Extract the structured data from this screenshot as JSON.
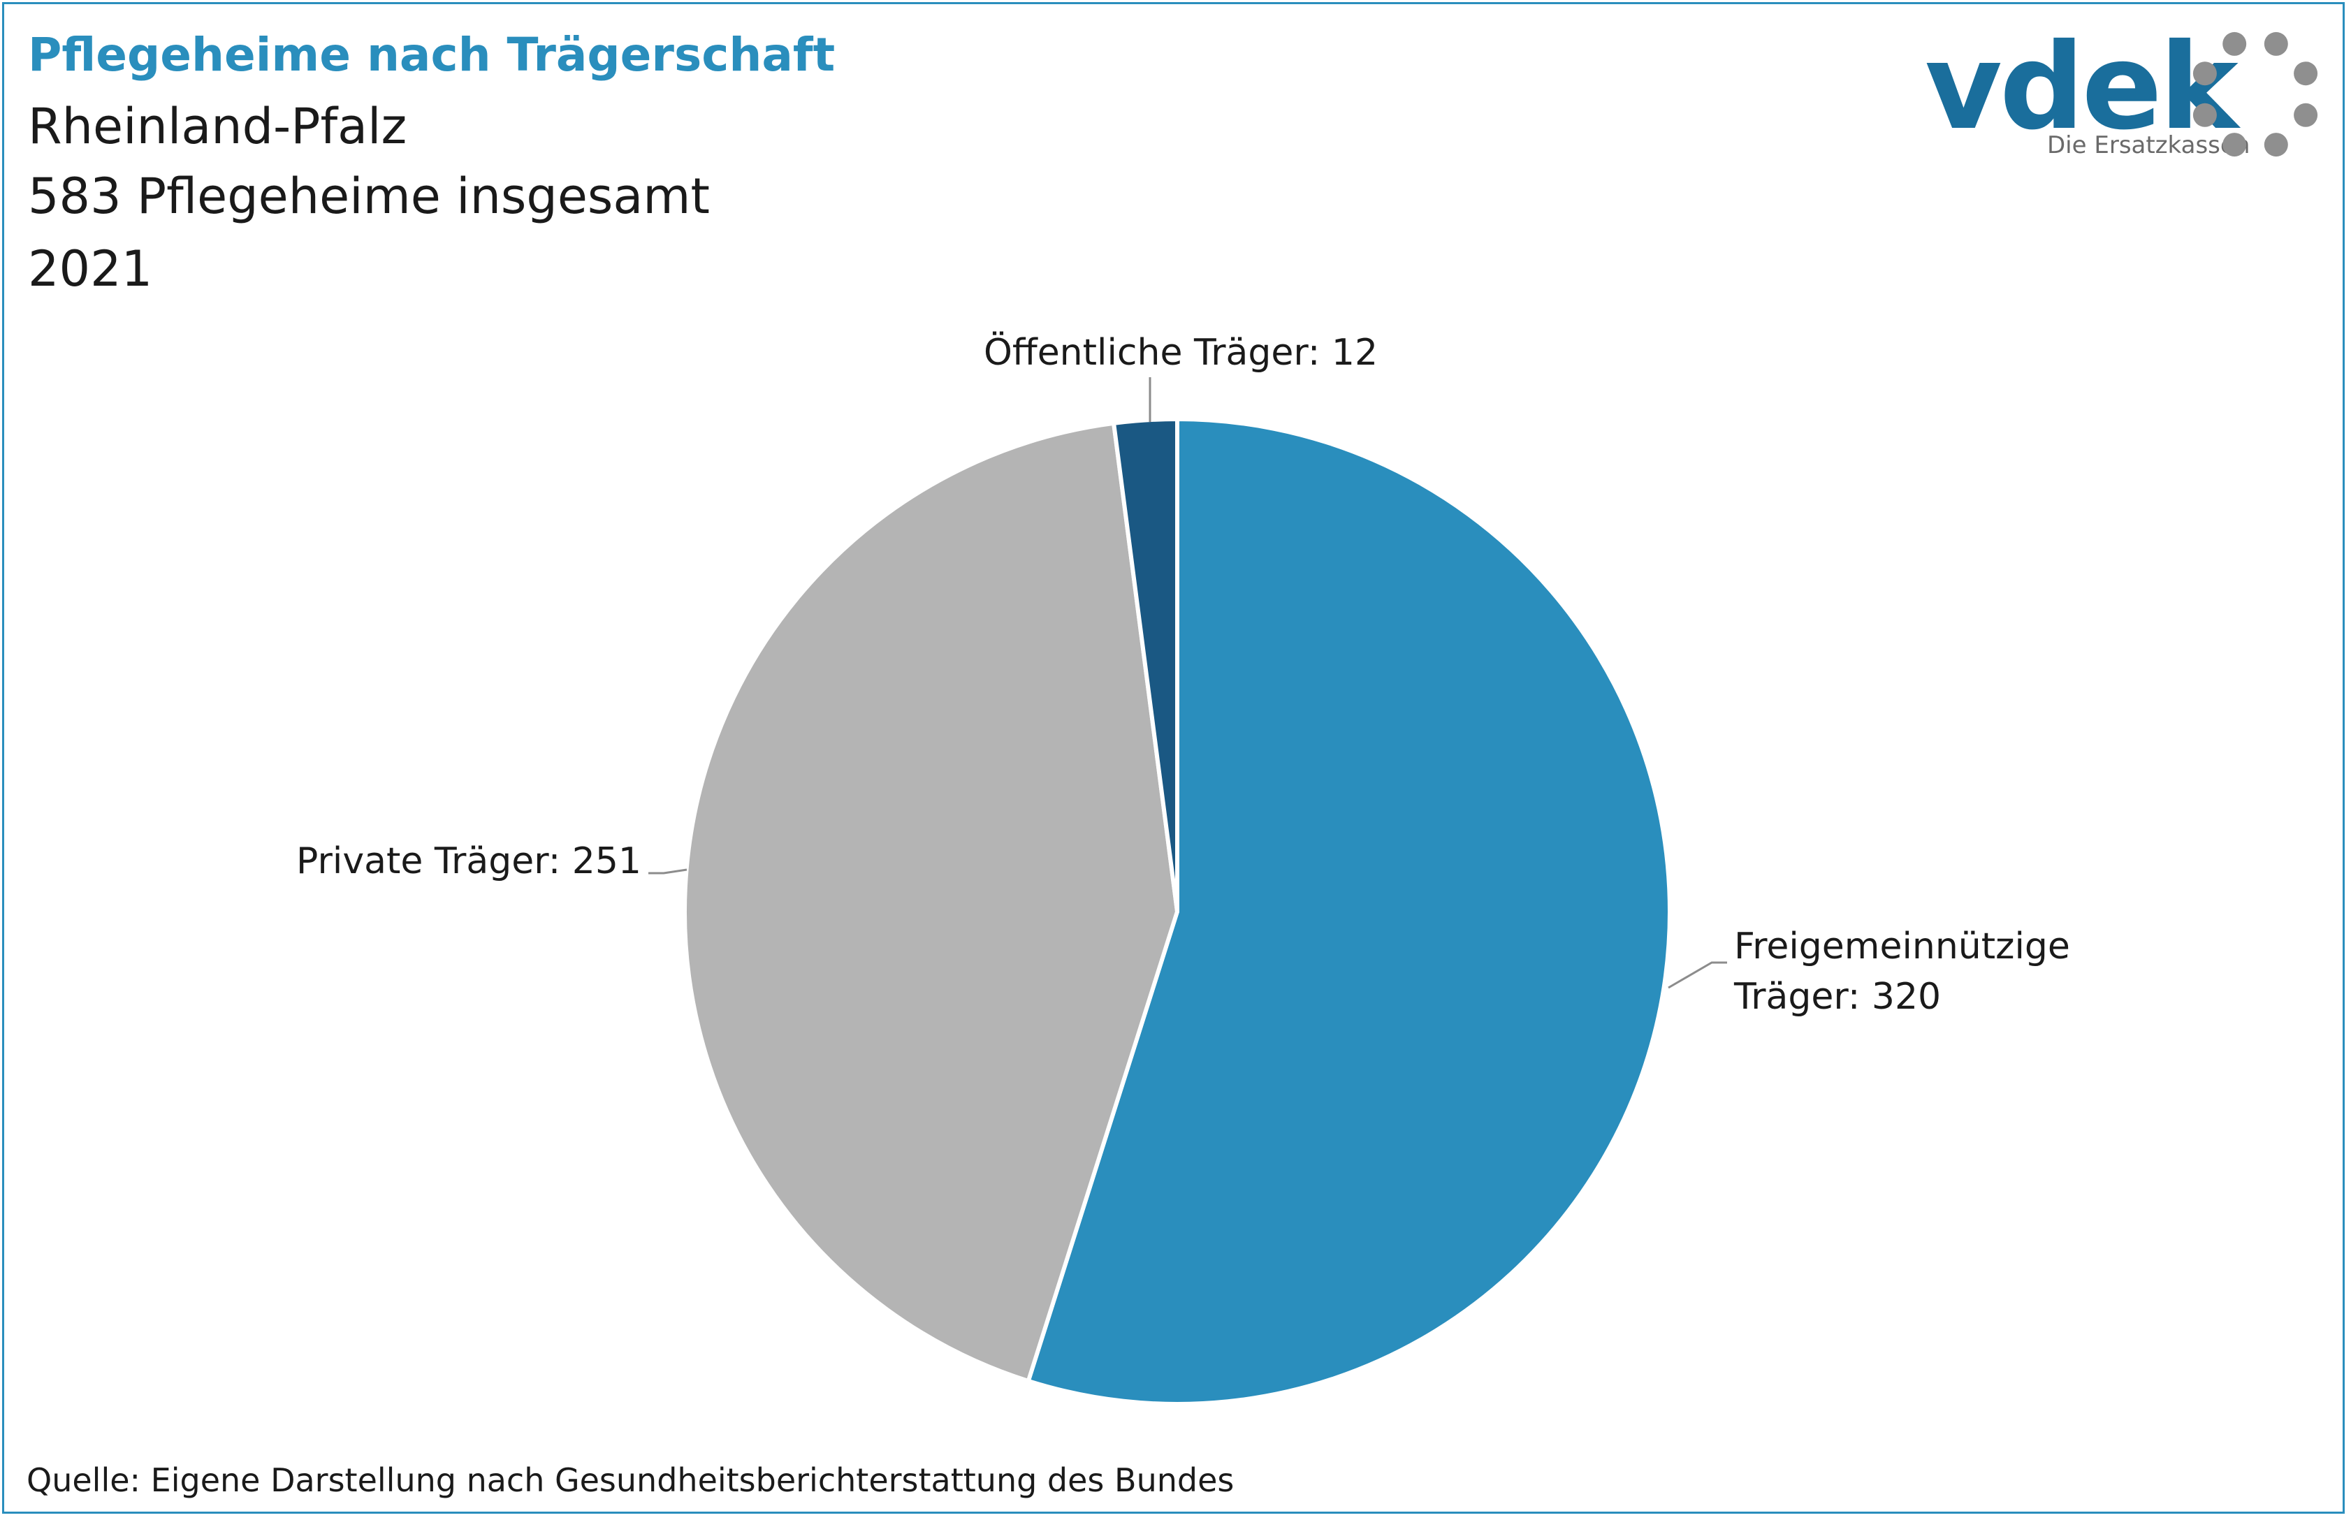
{
  "header": {
    "title": "Pflegeheime nach Trägerschaft",
    "region": "Rheinland-Pfalz",
    "total": "583 Pflegeheime insgesamt",
    "year": "2021"
  },
  "logo": {
    "wordmark": "vdek",
    "tagline": "Die Ersatzkassen"
  },
  "footer": {
    "source": "Quelle: Eigene Darstellung nach Gesundheitsberichterstattung des Bundes"
  },
  "colors": {
    "accent": "#2a8ebd",
    "freigemeinnuetzig": "#2a8ebd",
    "privat": "#b4b4b4",
    "oeffentlich": "#1a5883"
  },
  "chart_data": {
    "type": "pie",
    "title": "Pflegeheime nach Trägerschaft",
    "start_angle_deg": 0,
    "direction": "clockwise",
    "slices": [
      {
        "name": "Freigemeinnützige Träger",
        "value": 320,
        "label_lines": [
          "Freigemeinnützige",
          "Träger: 320"
        ],
        "color": "#2a8ebd"
      },
      {
        "name": "Private Träger",
        "value": 251,
        "label_lines": [
          "Private Träger: 251"
        ],
        "color": "#b4b4b4"
      },
      {
        "name": "Öffentliche Träger",
        "value": 12,
        "label_lines": [
          "Öffentliche Träger: 12"
        ],
        "color": "#1a5883"
      }
    ]
  }
}
